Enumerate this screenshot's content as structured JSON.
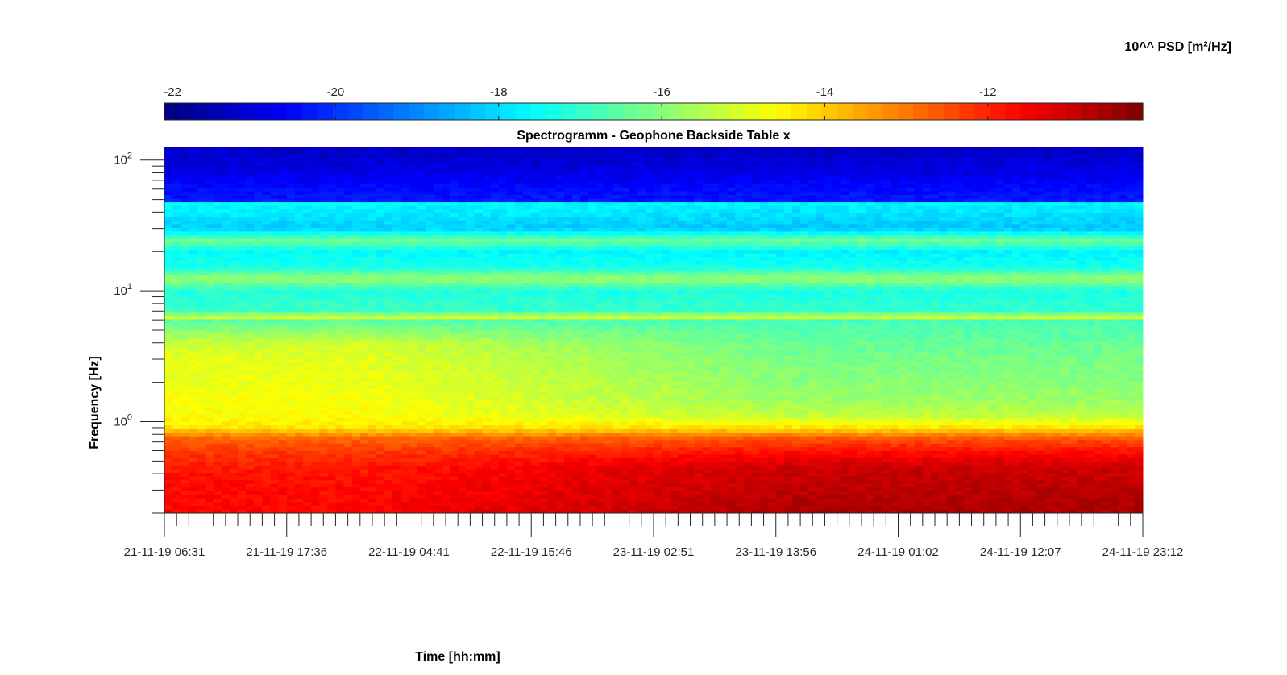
{
  "chart_data": {
    "type": "heatmap",
    "title": "Spectrogramm - Geophone Backside Table x",
    "xlabel": "Time [hh:mm]",
    "ylabel": "Frequency [Hz]",
    "x_tick_labels": [
      "21-11-19 06:31",
      "21-11-19 17:36",
      "22-11-19 04:41",
      "22-11-19 15:46",
      "23-11-19 02:51",
      "23-11-19 13:56",
      "24-11-19 01:02",
      "24-11-19 12:07",
      "24-11-19 23:12"
    ],
    "y_scale": "log",
    "y_ticks": [
      1,
      10,
      100
    ],
    "y_tick_base": "10",
    "y_tick_exponents": [
      "0",
      "1",
      "2"
    ],
    "ylim": [
      0.2,
      125
    ],
    "colorbar": {
      "label": "10^^ PSD [m²/Hz]",
      "ticks": [
        -22,
        -20,
        -18,
        -16,
        -14,
        -12
      ],
      "tick_labels": [
        "-22",
        "-20",
        "-18",
        "-16",
        "-14",
        "-12"
      ],
      "range": [
        -22.1,
        -10.1
      ],
      "colormap": "jet",
      "location": "top"
    },
    "psd_profile_by_frequency": {
      "frequency_hz": [
        0.2,
        0.3,
        0.45,
        0.6,
        0.75,
        0.9,
        1.1,
        1.5,
        2.0,
        3.0,
        4.0,
        5.0,
        6.0,
        6.3,
        7.0,
        10.0,
        12.4,
        15.0,
        20.0,
        24.0,
        30.0,
        40.0,
        47.0,
        48.0,
        60.0,
        80.0,
        100.0,
        125.0
      ],
      "log10_psd_start": [
        -11.6,
        -11.7,
        -11.9,
        -12.3,
        -12.8,
        -14.3,
        -14.6,
        -14.7,
        -14.8,
        -14.9,
        -15.2,
        -16.0,
        -16.6,
        -15.0,
        -16.9,
        -17.2,
        -15.8,
        -17.3,
        -17.6,
        -16.3,
        -18.2,
        -17.8,
        -17.6,
        -20.3,
        -20.5,
        -20.9,
        -21.1,
        -21.3
      ],
      "log10_psd_end": [
        -10.6,
        -10.8,
        -11.0,
        -11.8,
        -12.6,
        -14.3,
        -15.3,
        -15.8,
        -16.0,
        -16.2,
        -16.4,
        -16.6,
        -16.8,
        -15.0,
        -17.0,
        -17.3,
        -15.8,
        -17.4,
        -17.7,
        -16.3,
        -18.3,
        -17.9,
        -17.7,
        -20.3,
        -20.5,
        -20.9,
        -21.1,
        -21.3
      ]
    }
  }
}
